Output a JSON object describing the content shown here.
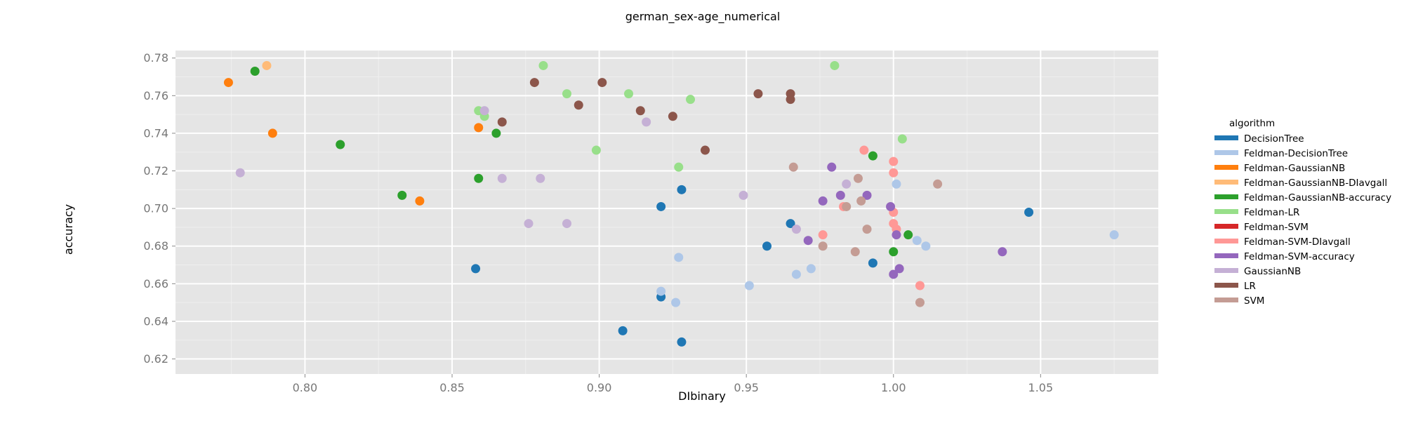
{
  "chart_data": {
    "type": "scatter",
    "title": "german_sex-age_numerical",
    "xlabel": "DIbinary",
    "ylabel": "accuracy",
    "xlim": [
      0.756,
      1.09
    ],
    "ylim": [
      0.612,
      0.784
    ],
    "x_ticks": [
      "0.80",
      "0.85",
      "0.90",
      "0.95",
      "1.00",
      "1.05"
    ],
    "y_ticks": [
      "0.62",
      "0.64",
      "0.66",
      "0.68",
      "0.70",
      "0.72",
      "0.74",
      "0.76",
      "0.78"
    ],
    "grid": true,
    "legend": {
      "title": "algorithm",
      "placement": "right"
    },
    "series": [
      {
        "name": "DecisionTree",
        "color": "#1f77b4",
        "points": [
          [
            0.858,
            0.668
          ],
          [
            0.908,
            0.635
          ],
          [
            0.921,
            0.653
          ],
          [
            0.921,
            0.701
          ],
          [
            0.928,
            0.71
          ],
          [
            0.928,
            0.629
          ],
          [
            0.957,
            0.68
          ],
          [
            0.965,
            0.692
          ],
          [
            0.993,
            0.671
          ],
          [
            1.046,
            0.698
          ]
        ]
      },
      {
        "name": "Feldman-DecisionTree",
        "color": "#aec7e8",
        "points": [
          [
            0.921,
            0.656
          ],
          [
            0.926,
            0.65
          ],
          [
            0.927,
            0.674
          ],
          [
            0.951,
            0.659
          ],
          [
            0.967,
            0.665
          ],
          [
            0.972,
            0.668
          ],
          [
            1.001,
            0.713
          ],
          [
            1.008,
            0.683
          ],
          [
            1.011,
            0.68
          ],
          [
            1.075,
            0.686
          ]
        ]
      },
      {
        "name": "Feldman-GaussianNB",
        "color": "#ff7f0e",
        "points": [
          [
            0.774,
            0.767
          ],
          [
            0.789,
            0.74
          ],
          [
            0.839,
            0.704
          ],
          [
            0.859,
            0.743
          ]
        ]
      },
      {
        "name": "Feldman-GaussianNB-DIavgall",
        "color": "#ffbb78",
        "points": [
          [
            0.787,
            0.776
          ]
        ]
      },
      {
        "name": "Feldman-GaussianNB-accuracy",
        "color": "#2ca02c",
        "points": [
          [
            0.783,
            0.773
          ],
          [
            0.812,
            0.734
          ],
          [
            0.833,
            0.707
          ],
          [
            0.859,
            0.716
          ],
          [
            0.865,
            0.74
          ],
          [
            0.993,
            0.728
          ],
          [
            1.0,
            0.677
          ],
          [
            1.005,
            0.686
          ]
        ]
      },
      {
        "name": "Feldman-LR",
        "color": "#98df8a",
        "points": [
          [
            0.859,
            0.752
          ],
          [
            0.861,
            0.749
          ],
          [
            0.881,
            0.776
          ],
          [
            0.889,
            0.761
          ],
          [
            0.899,
            0.731
          ],
          [
            0.91,
            0.761
          ],
          [
            0.927,
            0.722
          ],
          [
            0.931,
            0.758
          ],
          [
            0.98,
            0.776
          ],
          [
            1.003,
            0.737
          ]
        ]
      },
      {
        "name": "Feldman-SVM",
        "color": "#d62728",
        "points": []
      },
      {
        "name": "Feldman-SVM-DIavgall",
        "color": "#ff9896",
        "points": [
          [
            0.976,
            0.686
          ],
          [
            0.983,
            0.701
          ],
          [
            0.99,
            0.731
          ],
          [
            1.0,
            0.725
          ],
          [
            1.0,
            0.719
          ],
          [
            1.0,
            0.698
          ],
          [
            1.0,
            0.692
          ],
          [
            1.001,
            0.689
          ],
          [
            1.009,
            0.659
          ]
        ]
      },
      {
        "name": "Feldman-SVM-accuracy",
        "color": "#9467bd",
        "points": [
          [
            0.971,
            0.683
          ],
          [
            0.976,
            0.704
          ],
          [
            0.979,
            0.722
          ],
          [
            0.982,
            0.707
          ],
          [
            0.991,
            0.707
          ],
          [
            0.999,
            0.701
          ],
          [
            1.0,
            0.665
          ],
          [
            1.001,
            0.686
          ],
          [
            1.002,
            0.668
          ],
          [
            1.037,
            0.677
          ]
        ]
      },
      {
        "name": "GaussianNB",
        "color": "#c5b0d5",
        "points": [
          [
            0.778,
            0.719
          ],
          [
            0.861,
            0.752
          ],
          [
            0.867,
            0.716
          ],
          [
            0.876,
            0.692
          ],
          [
            0.88,
            0.716
          ],
          [
            0.889,
            0.692
          ],
          [
            0.916,
            0.746
          ],
          [
            0.949,
            0.707
          ],
          [
            0.967,
            0.689
          ],
          [
            0.984,
            0.713
          ]
        ]
      },
      {
        "name": "LR",
        "color": "#8c564b",
        "points": [
          [
            0.867,
            0.746
          ],
          [
            0.878,
            0.767
          ],
          [
            0.893,
            0.755
          ],
          [
            0.901,
            0.767
          ],
          [
            0.914,
            0.752
          ],
          [
            0.925,
            0.749
          ],
          [
            0.936,
            0.731
          ],
          [
            0.954,
            0.761
          ],
          [
            0.965,
            0.761
          ],
          [
            0.965,
            0.758
          ]
        ]
      },
      {
        "name": "SVM",
        "color": "#c49c94",
        "points": [
          [
            0.966,
            0.722
          ],
          [
            0.976,
            0.68
          ],
          [
            0.984,
            0.701
          ],
          [
            0.987,
            0.677
          ],
          [
            0.988,
            0.716
          ],
          [
            0.989,
            0.704
          ],
          [
            0.991,
            0.689
          ],
          [
            1.009,
            0.65
          ],
          [
            1.015,
            0.713
          ]
        ]
      }
    ]
  }
}
